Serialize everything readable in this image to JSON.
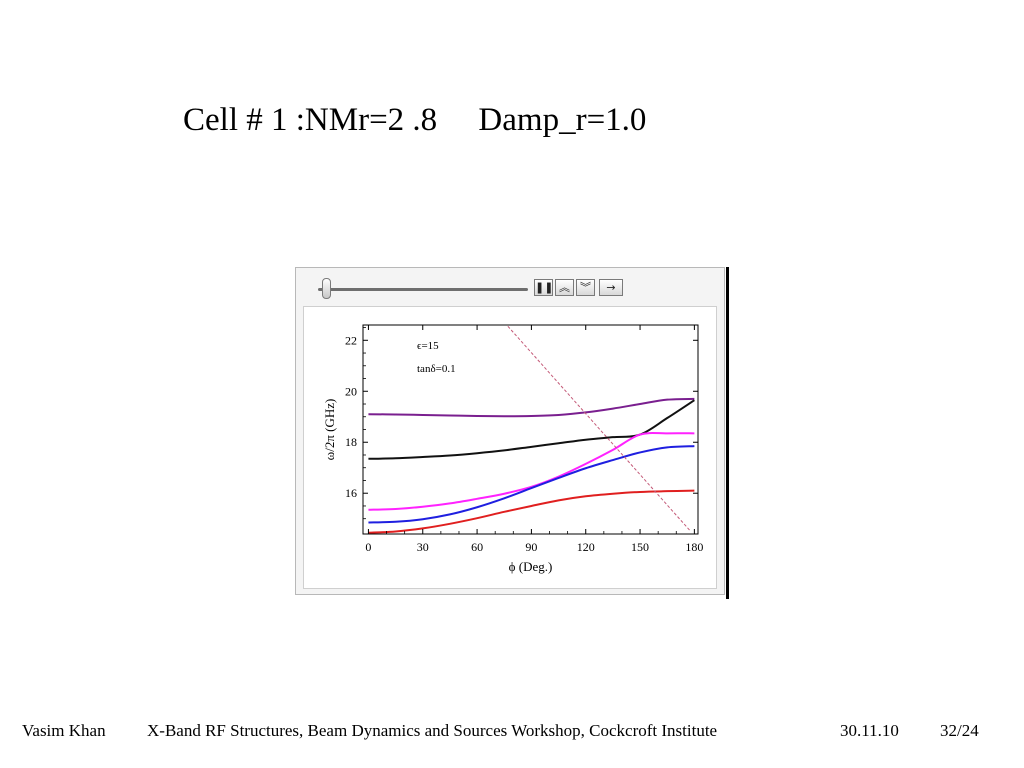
{
  "slide": {
    "title": "Cell # 1 :NMr=2 .8     Damp_r=1.0"
  },
  "controls": {
    "pause_glyph": "❚❚",
    "faster_glyph": "︽",
    "slower_glyph": "︾",
    "direction_glyph": "→",
    "slider_position": 0.02
  },
  "footer": {
    "author": "Vasim Khan",
    "event": "X-Band RF Structures, Beam Dynamics and Sources Workshop, Cockcroft Institute",
    "date": "30.11.10",
    "page": "32/24"
  },
  "chart_data": {
    "type": "line",
    "title": "",
    "xlabel": "ϕ (Deg.)",
    "ylabel": "ω/2π (GHz)",
    "xlim": [
      -3,
      182
    ],
    "ylim": [
      14.4,
      22.6
    ],
    "xticks": [
      0,
      30,
      60,
      90,
      120,
      150,
      180
    ],
    "yticks": [
      16,
      18,
      20,
      22
    ],
    "annotations": [
      "ϵ=15",
      "tanδ=0.1"
    ],
    "grid": false,
    "legend": "none",
    "series": [
      {
        "color": "#7a1f8f",
        "x": [
          0,
          15,
          30,
          45,
          60,
          75,
          90,
          105,
          120,
          135,
          150,
          165,
          180
        ],
        "values": [
          19.1,
          19.09,
          19.07,
          19.05,
          19.03,
          19.02,
          19.03,
          19.07,
          19.17,
          19.32,
          19.5,
          19.67,
          19.7
        ]
      },
      {
        "color": "#111111",
        "x": [
          0,
          15,
          30,
          45,
          60,
          75,
          90,
          105,
          120,
          135,
          150,
          165,
          180
        ],
        "values": [
          17.35,
          17.37,
          17.42,
          17.48,
          17.57,
          17.68,
          17.82,
          17.96,
          18.1,
          18.2,
          18.3,
          18.95,
          19.65
        ]
      },
      {
        "color": "#ff22ff",
        "x": [
          0,
          15,
          30,
          45,
          60,
          75,
          90,
          105,
          120,
          135,
          150,
          165,
          180
        ],
        "values": [
          15.35,
          15.38,
          15.47,
          15.6,
          15.78,
          15.98,
          16.25,
          16.65,
          17.15,
          17.7,
          18.3,
          18.35,
          18.35
        ]
      },
      {
        "color": "#1f1fe0",
        "x": [
          0,
          15,
          30,
          45,
          60,
          75,
          90,
          105,
          120,
          135,
          150,
          165,
          180
        ],
        "values": [
          14.85,
          14.88,
          14.98,
          15.17,
          15.45,
          15.8,
          16.2,
          16.6,
          16.98,
          17.3,
          17.6,
          17.8,
          17.85
        ]
      },
      {
        "color": "#e01f1f",
        "x": [
          0,
          15,
          30,
          45,
          60,
          75,
          90,
          105,
          120,
          135,
          150,
          165,
          180
        ],
        "values": [
          14.45,
          14.5,
          14.62,
          14.8,
          15.02,
          15.27,
          15.5,
          15.72,
          15.88,
          15.98,
          16.05,
          16.08,
          16.1
        ]
      },
      {
        "color": "#c45a78",
        "dashed": true,
        "x": [
          77,
          178
        ],
        "values": [
          22.55,
          14.5
        ]
      }
    ]
  }
}
